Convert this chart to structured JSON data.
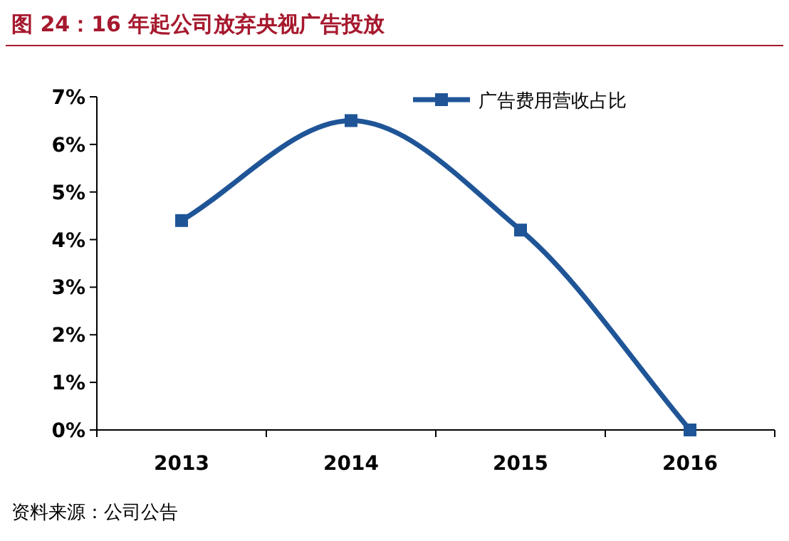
{
  "chart_data": {
    "type": "line",
    "title": "图 24：16 年起公司放弃央视广告投放",
    "categories": [
      "2013",
      "2014",
      "2015",
      "2016"
    ],
    "series": [
      {
        "name": "广告费用营收占比",
        "color": "#1f5597",
        "values": [
          4.4,
          6.5,
          4.2,
          0
        ]
      }
    ],
    "ylim": [
      0,
      7
    ],
    "yticks": [
      {
        "value": 0,
        "label": "0%"
      },
      {
        "value": 1,
        "label": "1%"
      },
      {
        "value": 2,
        "label": "2%"
      },
      {
        "value": 3,
        "label": "3%"
      },
      {
        "value": 4,
        "label": "4%"
      },
      {
        "value": 5,
        "label": "5%"
      },
      {
        "value": 6,
        "label": "6%"
      },
      {
        "value": 7,
        "label": "7%"
      }
    ],
    "marker": "square",
    "line_style": "solid",
    "legend": "top",
    "grid": false,
    "annotations": [
      "资料来源：公司公告"
    ]
  }
}
